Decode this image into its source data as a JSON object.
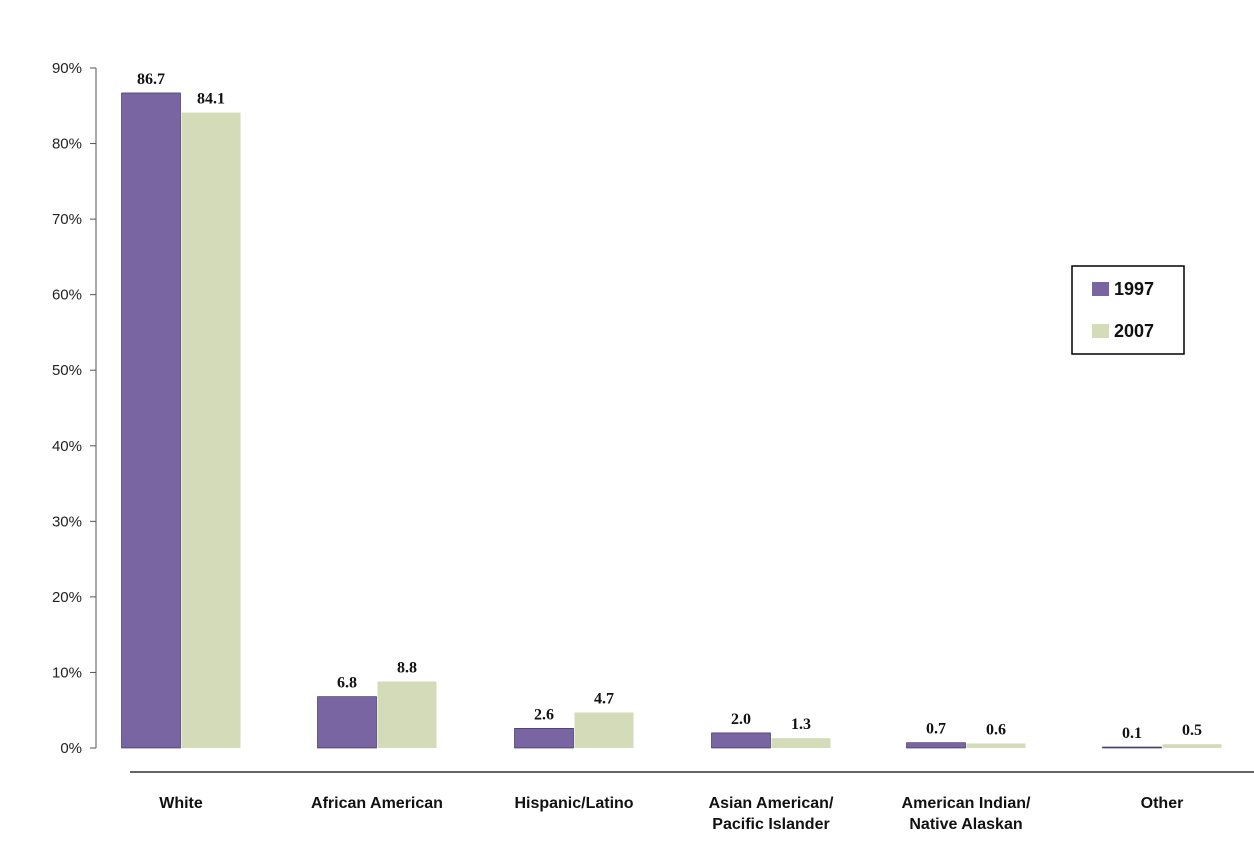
{
  "chart_data": {
    "type": "bar",
    "title": "",
    "xlabel": "",
    "ylabel": "",
    "ylim": [
      0,
      90
    ],
    "y_ticks": [
      "0%",
      "10%",
      "20%",
      "30%",
      "40%",
      "50%",
      "60%",
      "70%",
      "80%",
      "90%"
    ],
    "categories": [
      [
        "White"
      ],
      [
        "African American"
      ],
      [
        "Hispanic/Latino"
      ],
      [
        "Asian American/",
        "Pacific Islander"
      ],
      [
        "American Indian/",
        "Native Alaskan"
      ],
      [
        "Other"
      ]
    ],
    "series": [
      {
        "name": "1997",
        "color": "#7865a1",
        "values": [
          86.7,
          6.8,
          2.6,
          2.0,
          0.7,
          0.1
        ],
        "labels": [
          "86.7",
          "6.8",
          "2.6",
          "2.0",
          "0.7",
          "0.1"
        ]
      },
      {
        "name": "2007",
        "color": "#d4dbb8",
        "values": [
          84.1,
          8.8,
          4.7,
          1.3,
          0.6,
          0.5
        ],
        "labels": [
          "84.1",
          "8.8",
          "4.7",
          "1.3",
          "0.6",
          "0.5"
        ]
      }
    ],
    "grid": false,
    "legend_position": "right"
  }
}
